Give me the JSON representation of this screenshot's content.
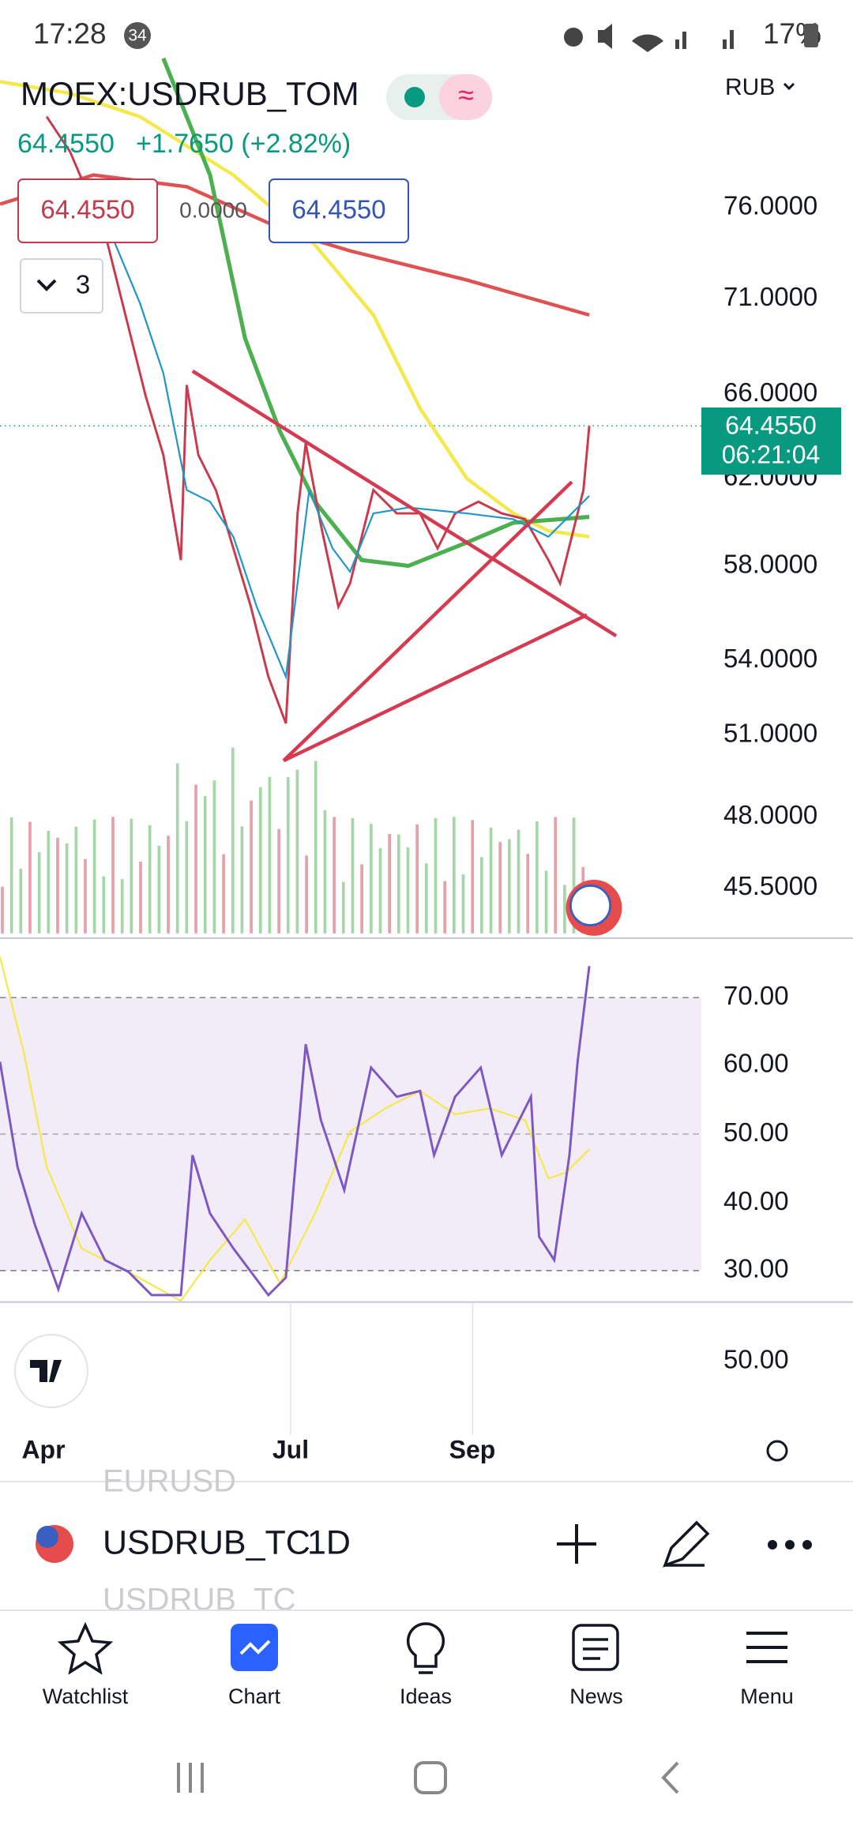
{
  "status_bar": {
    "time": "17:28",
    "badge": "34",
    "battery": "17%"
  },
  "header": {
    "symbol": "MOEX:USDRUB_TOM",
    "price": "64.4550",
    "change": "+1.7650 (+2.82%)",
    "currency": "RUB",
    "bid": "64.4550",
    "spread": "0.0000",
    "ask": "64.4550",
    "indicators": "3"
  },
  "price_axis": [
    "76.0000",
    "71.0000",
    "66.0000",
    "62.0000",
    "58.0000",
    "54.0000",
    "51.0000",
    "48.0000",
    "45.5000"
  ],
  "last_price": {
    "price": "64.4550",
    "countdown": "06:21:04"
  },
  "rsi_axis": [
    "70.00",
    "60.00",
    "50.00",
    "40.00",
    "30.00"
  ],
  "lower_pane_axis": [
    "50.00"
  ],
  "time_axis": [
    "Apr",
    "Jul",
    "Sep"
  ],
  "toolbar": {
    "symbol": "USDRUB_TC",
    "interval": "1D",
    "ghost_above": "EURUSD",
    "ghost_below": "USDRUB_TC"
  },
  "nav": [
    "Watchlist",
    "Chart",
    "Ideas",
    "News",
    "Menu"
  ]
}
